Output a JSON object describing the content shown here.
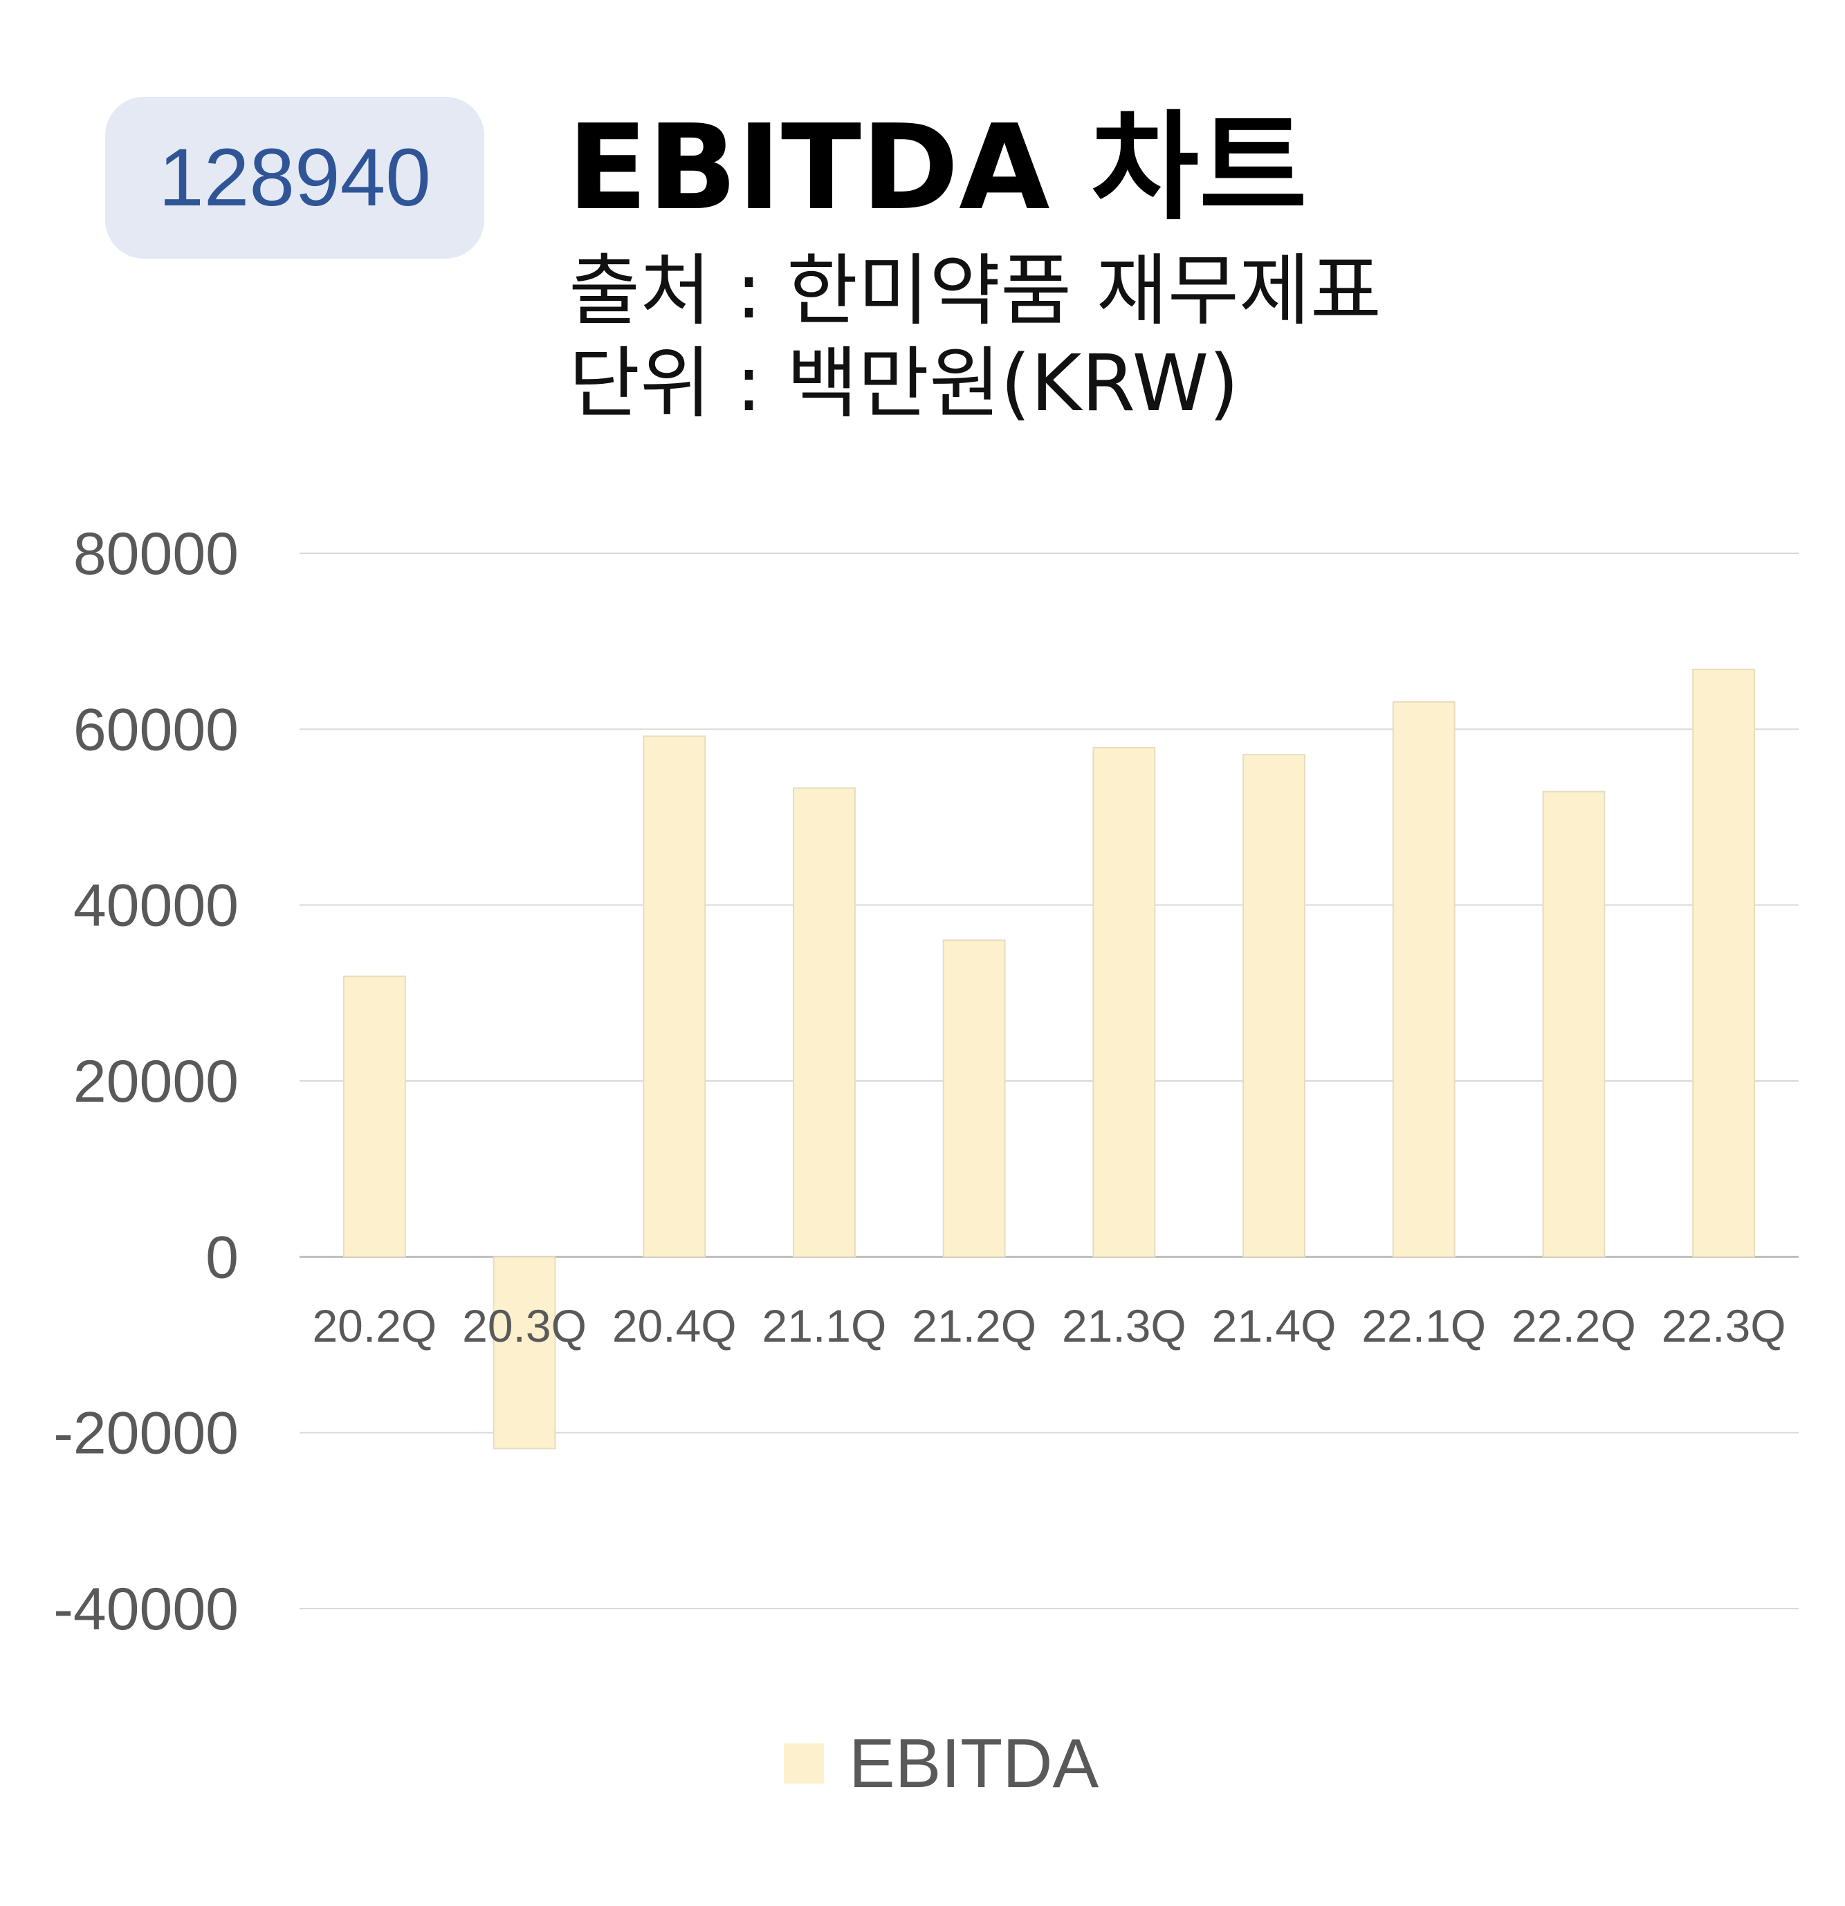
{
  "badge": {
    "code": "128940"
  },
  "header": {
    "title": "EBITDA 차트",
    "source": "출처 : 한미약품 재무제표",
    "unit": "단위 : 백만원(KRW)"
  },
  "colors": {
    "badge_bg": "#e4e9f4",
    "badge_text": "#2f5597",
    "bar_fill": "#fdf0cc",
    "gridline": "#d9d9d9",
    "axis_text": "#595959"
  },
  "chart_data": {
    "type": "bar",
    "categories": [
      "20.2Q",
      "20.3Q",
      "20.4Q",
      "21.1Q",
      "21.2Q",
      "21.3Q",
      "21.4Q",
      "22.1Q",
      "22.2Q",
      "22.3Q"
    ],
    "series": [
      {
        "name": "EBITDA",
        "values": [
          31900,
          -21800,
          59200,
          53300,
          36000,
          57900,
          57100,
          63100,
          52900,
          66800
        ]
      }
    ],
    "ylim": [
      -40000,
      80000
    ],
    "yticks": [
      80000,
      60000,
      40000,
      20000,
      0,
      -20000,
      -40000
    ],
    "ytick_labels": [
      "80000",
      "60000",
      "40000",
      "20000",
      "0",
      "-20000",
      "-40000"
    ],
    "grid": true,
    "legend_position": "bottom"
  },
  "legend": {
    "label": "EBITDA"
  }
}
